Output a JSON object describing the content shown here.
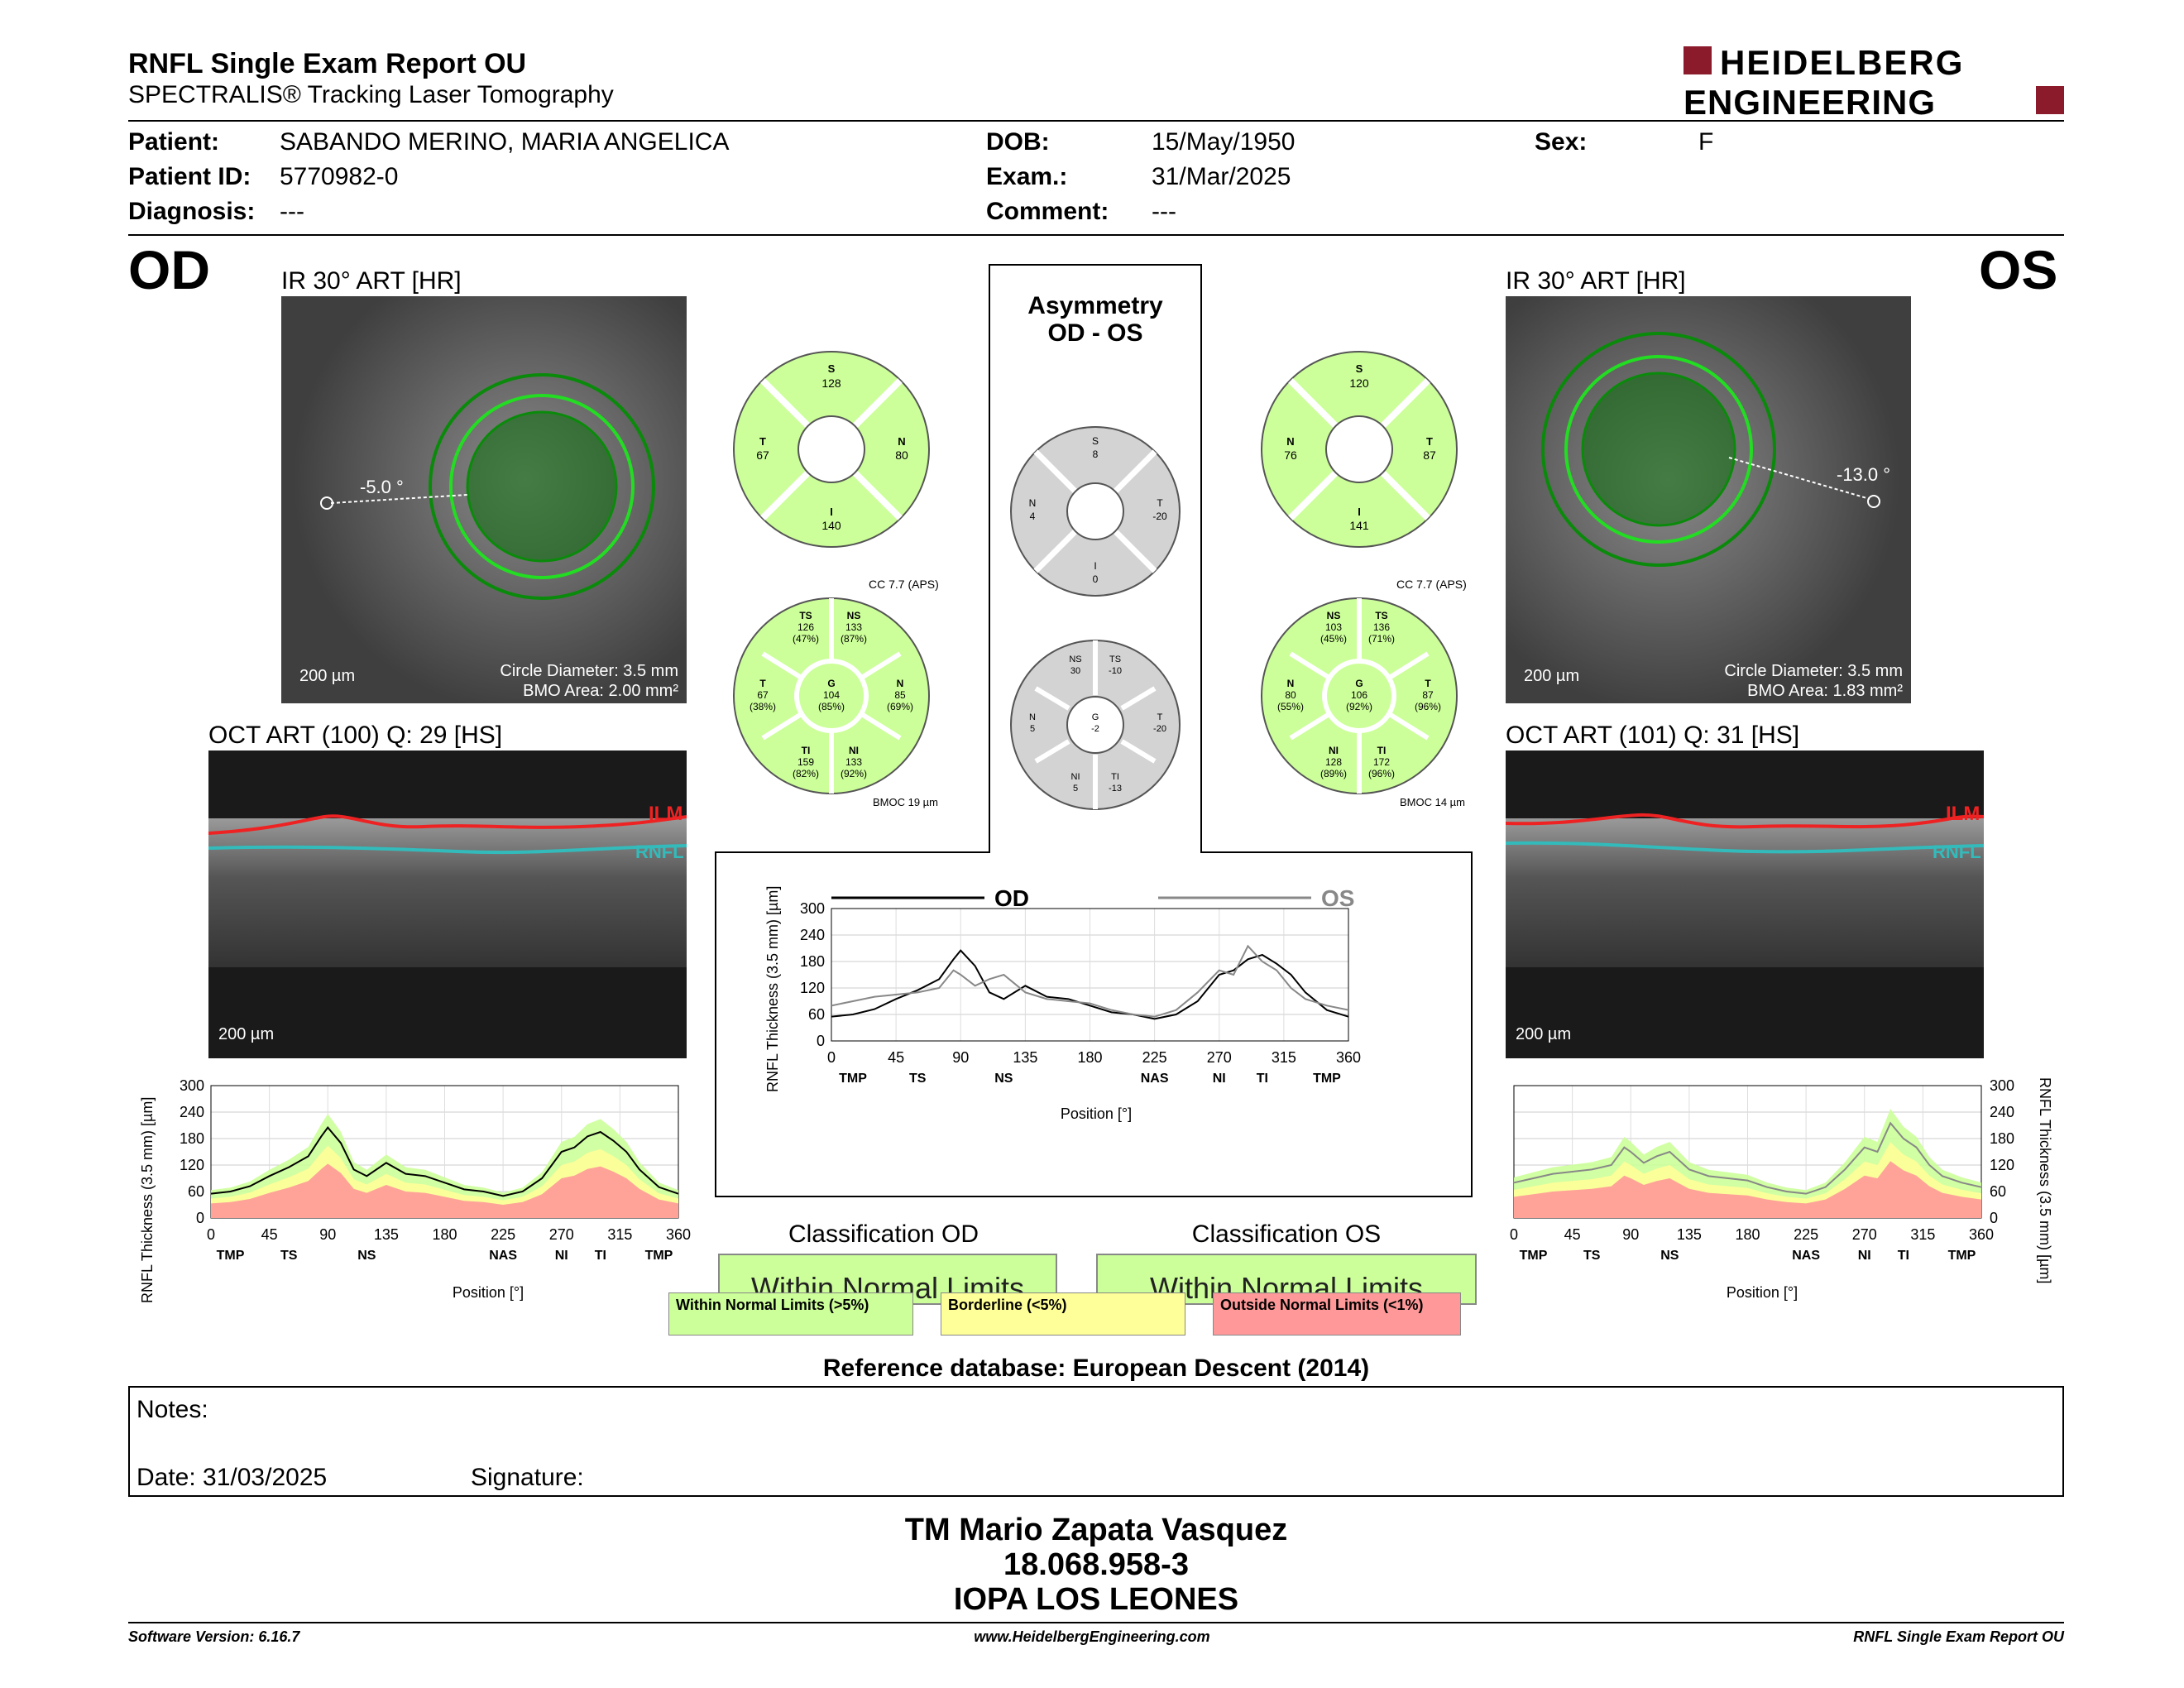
{
  "header": {
    "title": "RNFL Single Exam Report OU",
    "subtitle": "SPECTRALIS® Tracking Laser Tomography",
    "logo_line1": "HEIDELBERG",
    "logo_line2": "ENGINEERING",
    "brand_color": "#8b1a2b"
  },
  "patient": {
    "patient_label": "Patient:",
    "patient": "SABANDO MERINO, MARIA ANGELICA",
    "id_label": "Patient ID:",
    "id": "5770982-0",
    "diagnosis_label": "Diagnosis:",
    "diagnosis": "---",
    "dob_label": "DOB:",
    "dob": "15/May/1950",
    "exam_label": "Exam.:",
    "exam": "31/Mar/2025",
    "comment_label": "Comment:",
    "comment": "---",
    "sex_label": "Sex:",
    "sex": "F"
  },
  "od": {
    "eye": "OD",
    "ir_title": "IR 30° ART [HR]",
    "angle": "-5.0 °",
    "scale": "200 µm",
    "circle": "Circle Diameter: 3.5 mm",
    "bmo": "BMO Area: 2.00 mm²",
    "oct_title": "OCT ART (100) Q: 29 [HS]",
    "oct_scale": "200 µm",
    "ilm": "ILM",
    "rnfl": "RNFL",
    "sectors4": {
      "S": "128",
      "T": "67",
      "N": "80",
      "I": "140"
    },
    "sectors6": {
      "TS": "126",
      "TS_p": "(47%)",
      "NS": "133",
      "NS_p": "(87%)",
      "T": "67",
      "T_p": "(38%)",
      "G": "104",
      "G_p": "(85%)",
      "N": "85",
      "N_p": "(69%)",
      "TI": "159",
      "TI_p": "(82%)",
      "NI": "133",
      "NI_p": "(92%)"
    },
    "cc": "CC 7.7 (APS)",
    "bmoc": "BMOC 19 µm",
    "classification_title": "Classification OD",
    "classification": "Within Normal Limits"
  },
  "os": {
    "eye": "OS",
    "ir_title": "IR 30° ART [HR]",
    "angle": "-13.0 °",
    "scale": "200 µm",
    "circle": "Circle Diameter: 3.5 mm",
    "bmo": "BMO Area: 1.83 mm²",
    "oct_title": "OCT ART (101) Q: 31 [HS]",
    "oct_scale": "200 µm",
    "ilm": "ILM",
    "rnfl": "RNFL",
    "sectors4": {
      "S": "120",
      "N": "76",
      "T": "87",
      "I": "141"
    },
    "sectors6": {
      "NS": "103",
      "NS_p": "(45%)",
      "TS": "136",
      "TS_p": "(71%)",
      "N": "80",
      "N_p": "(55%)",
      "G": "106",
      "G_p": "(92%)",
      "T": "87",
      "T_p": "(96%)",
      "NI": "128",
      "NI_p": "(89%)",
      "TI": "172",
      "TI_p": "(96%)"
    },
    "cc": "CC 7.7 (APS)",
    "bmoc": "BMOC 14 µm",
    "classification_title": "Classification OS",
    "classification": "Within Normal Limits"
  },
  "asym": {
    "title1": "Asymmetry",
    "title2": "OD - OS",
    "sectors4": {
      "S": "8",
      "N": "4",
      "T": "-20",
      "I": "0"
    },
    "sectors6": {
      "NS": "30",
      "TS": "-10",
      "N": "5",
      "G": "-2",
      "T": "-20",
      "NI": "5",
      "TI": "-13"
    }
  },
  "legend": {
    "wnl": "Within Normal Limits (>5%)",
    "bl": "Borderline (<5%)",
    "onl": "Outside Normal Limits (<1%)",
    "wnl_color": "#ccff99",
    "bl_color": "#ffff99",
    "onl_color": "#ff9999"
  },
  "reference": "Reference database: European Descent (2014)",
  "notes": {
    "label": "Notes:",
    "date": "Date: 31/03/2025",
    "signature": "Signature:"
  },
  "signer": {
    "name": "TM Mario Zapata Vasquez",
    "id": "18.068.958-3",
    "org": "IOPA LOS LEONES"
  },
  "footer": {
    "version": "Software Version: 6.16.7",
    "url": "www.HeidelbergEngineering.com",
    "report": "RNFL Single Exam Report OU"
  },
  "chart_data": [
    {
      "type": "line",
      "title": "",
      "xlabel": "Position [°]",
      "ylabel": "RNFL Thickness (3.5 mm) [µm]",
      "xlim": [
        0,
        360
      ],
      "ylim": [
        0,
        300
      ],
      "xticks": [
        "0",
        "45",
        "90",
        "135",
        "180",
        "225",
        "270",
        "315",
        "360"
      ],
      "yticks": [
        "0",
        "60",
        "120",
        "180",
        "240",
        "300"
      ],
      "sector_labels": [
        "TMP",
        "TS",
        "NS",
        "NAS",
        "NI",
        "TI",
        "TMP"
      ],
      "series": [
        {
          "name": "OD",
          "color": "#000000",
          "x": [
            0,
            15,
            30,
            45,
            60,
            75,
            85,
            90,
            100,
            110,
            120,
            135,
            150,
            165,
            180,
            195,
            210,
            225,
            240,
            255,
            270,
            280,
            290,
            300,
            310,
            320,
            330,
            345,
            360
          ],
          "y": [
            55,
            60,
            72,
            95,
            115,
            140,
            185,
            205,
            170,
            110,
            95,
            125,
            100,
            95,
            80,
            65,
            60,
            50,
            60,
            90,
            150,
            160,
            185,
            195,
            175,
            150,
            110,
            70,
            55
          ]
        },
        {
          "name": "OS",
          "color": "#888888",
          "x": [
            0,
            15,
            30,
            45,
            60,
            75,
            85,
            90,
            100,
            110,
            120,
            135,
            150,
            165,
            180,
            195,
            210,
            225,
            240,
            255,
            270,
            280,
            290,
            300,
            310,
            320,
            330,
            345,
            360
          ],
          "y": [
            80,
            90,
            100,
            105,
            110,
            120,
            160,
            150,
            125,
            140,
            150,
            110,
            95,
            90,
            85,
            70,
            60,
            55,
            70,
            110,
            160,
            150,
            215,
            180,
            160,
            120,
            95,
            80,
            70
          ]
        }
      ]
    }
  ]
}
